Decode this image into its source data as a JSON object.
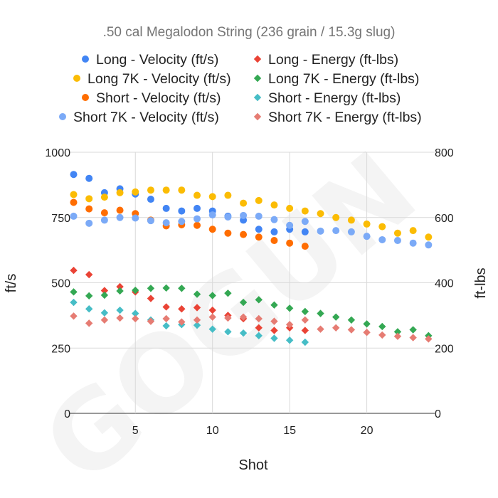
{
  "chart_data": {
    "type": "scatter",
    "title": ".50 cal Megalodon String (236 grain / 15.3g slug)",
    "xlabel": "Shot",
    "ylabel": "ft/s",
    "ylabel_right": "ft-lbs",
    "xlim": [
      0.7,
      24.4
    ],
    "ylim": [
      0,
      1000
    ],
    "ylim_right": [
      0,
      800
    ],
    "x_ticks": [
      5,
      10,
      15,
      20
    ],
    "y_ticks": [
      0,
      250,
      500,
      750,
      1000
    ],
    "y_ticks_right": [
      0,
      200,
      400,
      600,
      800
    ],
    "grid": true,
    "legend_position": "top",
    "watermark": "GOGUN",
    "series": [
      {
        "name": "Long - Velocity (ft/s)",
        "axis": "left",
        "marker": "circle",
        "color": "#4285F4",
        "x": [
          1,
          2,
          3,
          4,
          5,
          6,
          7,
          8,
          9,
          10,
          11,
          12,
          13,
          14,
          15,
          16
        ],
        "y": [
          915,
          900,
          845,
          860,
          840,
          820,
          785,
          775,
          785,
          775,
          755,
          740,
          705,
          695,
          705,
          695
        ]
      },
      {
        "name": "Long 7K - Velocity (ft/s)",
        "axis": "left",
        "marker": "circle",
        "color": "#FBBC04",
        "x": [
          1,
          2,
          3,
          4,
          5,
          6,
          7,
          8,
          9,
          10,
          11,
          12,
          13,
          14,
          15,
          16,
          17,
          18,
          19,
          20,
          21,
          22,
          23,
          24
        ],
        "y": [
          838,
          822,
          828,
          845,
          848,
          855,
          855,
          855,
          835,
          830,
          835,
          805,
          815,
          798,
          785,
          775,
          765,
          750,
          740,
          725,
          715,
          690,
          700,
          675
        ]
      },
      {
        "name": "Short - Velocity (ft/s)",
        "axis": "left",
        "marker": "circle",
        "color": "#FF6D01",
        "x": [
          1,
          2,
          3,
          4,
          5,
          6,
          7,
          8,
          9,
          10,
          11,
          12,
          13,
          14,
          15,
          16
        ],
        "y": [
          808,
          783,
          768,
          778,
          765,
          740,
          718,
          722,
          720,
          705,
          690,
          685,
          675,
          662,
          652,
          640
        ]
      },
      {
        "name": "Short 7K - Velocity (ft/s)",
        "axis": "left",
        "marker": "circle",
        "color": "#7BAAF7",
        "x": [
          1,
          2,
          3,
          4,
          5,
          6,
          7,
          8,
          9,
          10,
          11,
          12,
          13,
          14,
          15,
          16,
          17,
          18,
          19,
          20,
          21,
          22,
          23,
          24
        ],
        "y": [
          755,
          728,
          740,
          750,
          748,
          738,
          730,
          735,
          745,
          760,
          752,
          758,
          755,
          742,
          720,
          735,
          698,
          700,
          695,
          678,
          665,
          662,
          652,
          645
        ]
      },
      {
        "name": "Long - Energy (ft-lbs)",
        "axis": "right",
        "marker": "diamond",
        "color": "#EA4335",
        "x": [
          1,
          2,
          3,
          4,
          5,
          6,
          7,
          8,
          9,
          10,
          11,
          12,
          13,
          14,
          15,
          16
        ],
        "y": [
          438,
          425,
          376,
          388,
          372,
          352,
          326,
          320,
          324,
          316,
          300,
          290,
          262,
          254,
          262,
          254
        ]
      },
      {
        "name": "Long 7K - Energy (ft-lbs)",
        "axis": "right",
        "marker": "diamond",
        "color": "#34A853",
        "x": [
          1,
          2,
          3,
          4,
          5,
          6,
          7,
          8,
          9,
          10,
          11,
          12,
          13,
          14,
          15,
          16,
          17,
          18,
          19,
          20,
          21,
          22,
          23,
          24
        ],
        "y": [
          372,
          360,
          362,
          375,
          377,
          383,
          384,
          383,
          365,
          361,
          368,
          340,
          348,
          332,
          322,
          312,
          306,
          295,
          286,
          274,
          266,
          250,
          256,
          238
        ]
      },
      {
        "name": "Short - Energy (ft-lbs)",
        "axis": "right",
        "marker": "diamond",
        "color": "#46BDC6",
        "x": [
          1,
          2,
          3,
          4,
          5,
          6,
          7,
          8,
          9,
          10,
          11,
          12,
          13,
          14,
          15,
          16
        ],
        "y": [
          340,
          320,
          308,
          316,
          306,
          286,
          268,
          272,
          270,
          258,
          250,
          246,
          238,
          230,
          224,
          218
        ]
      },
      {
        "name": "Short 7K - Energy (ft-lbs)",
        "axis": "right",
        "marker": "diamond",
        "color": "#E67C73",
        "x": [
          1,
          2,
          3,
          4,
          5,
          6,
          7,
          8,
          9,
          10,
          11,
          12,
          13,
          14,
          15,
          16,
          17,
          18,
          19,
          20,
          21,
          22,
          23,
          24
        ],
        "y": [
          298,
          276,
          286,
          292,
          290,
          282,
          290,
          280,
          286,
          295,
          292,
          295,
          290,
          282,
          272,
          286,
          258,
          262,
          256,
          248,
          240,
          236,
          232,
          228
        ]
      }
    ]
  }
}
